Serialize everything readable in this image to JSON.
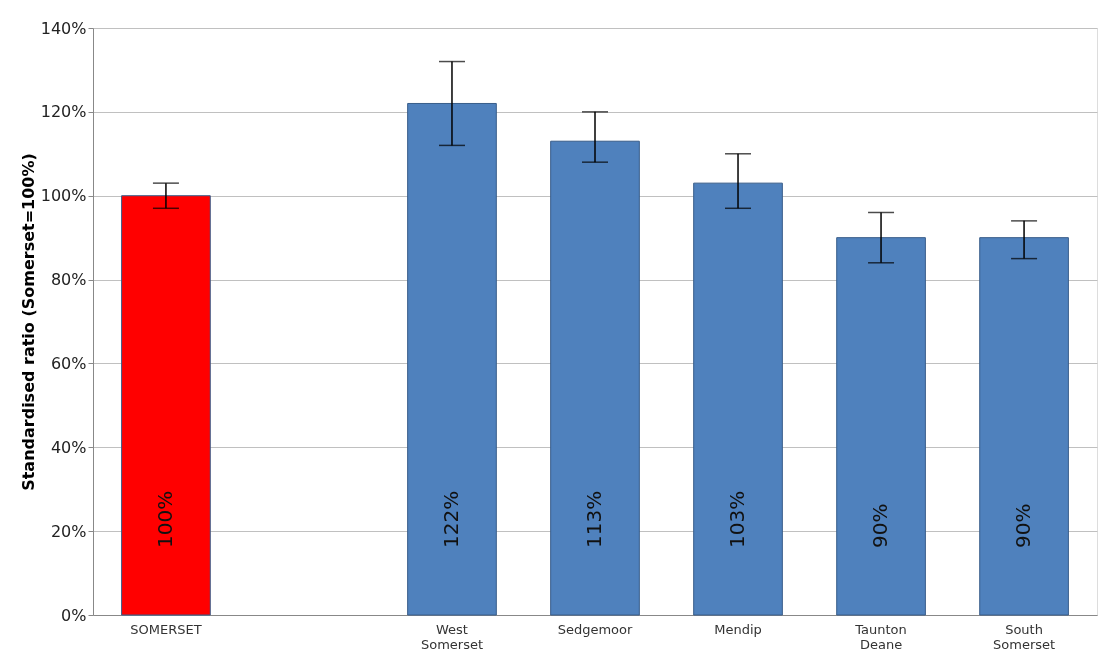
{
  "chart_data": {
    "type": "bar",
    "ylabel": "Standardised ratio (Somerset=100%)",
    "categories": [
      "SOMERSET",
      null,
      "West Somerset",
      "Sedgemoor",
      "Mendip",
      "Taunton Deane",
      "South Somerset"
    ],
    "values": [
      100,
      null,
      122,
      113,
      103,
      90,
      90
    ],
    "colors": [
      "#ff0000",
      "#4f81bd",
      "#4f81bd",
      "#4f81bd",
      "#4f81bd",
      "#4f81bd",
      "#4f81bd"
    ],
    "errors": [
      [
        97,
        103
      ],
      null,
      [
        112,
        132
      ],
      [
        108,
        120
      ],
      [
        97,
        110
      ],
      [
        84,
        96
      ],
      [
        85,
        94
      ]
    ],
    "value_labels": [
      "100%",
      null,
      "122%",
      "113%",
      "103%",
      "90%",
      "90%"
    ],
    "ylim": [
      0,
      140
    ],
    "yticks": [
      {
        "value": 0,
        "label": "0%"
      },
      {
        "value": 20,
        "label": "20%"
      },
      {
        "value": 40,
        "label": "40%"
      },
      {
        "value": 60,
        "label": "60%"
      },
      {
        "value": 80,
        "label": "80%"
      },
      {
        "value": 100,
        "label": "100%"
      },
      {
        "value": 120,
        "label": "120%"
      },
      {
        "value": 140,
        "label": "140%"
      }
    ],
    "grid": "y"
  }
}
